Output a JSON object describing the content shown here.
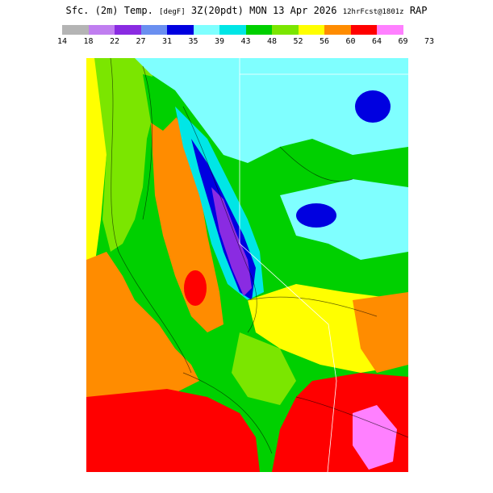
{
  "title": {
    "part1": "Sfc. (2m) Temp.",
    "unit": "[degF]",
    "part2": "3Z(20pdt) MON 13 Apr 2026",
    "run": "12hrFcst@1801z",
    "model": "RAP"
  },
  "legend": {
    "colors": [
      "#b4b4b4",
      "#c07ef0",
      "#8a2be2",
      "#6a8ff0",
      "#0000e0",
      "#7fffff",
      "#00e6e6",
      "#00d000",
      "#7be600",
      "#ffff00",
      "#ff8c00",
      "#ff0000",
      "#ff80ff"
    ],
    "ticks": [
      "14",
      "18",
      "22",
      "27",
      "31",
      "35",
      "39",
      "43",
      "48",
      "52",
      "56",
      "60",
      "64",
      "69",
      "73"
    ]
  }
}
